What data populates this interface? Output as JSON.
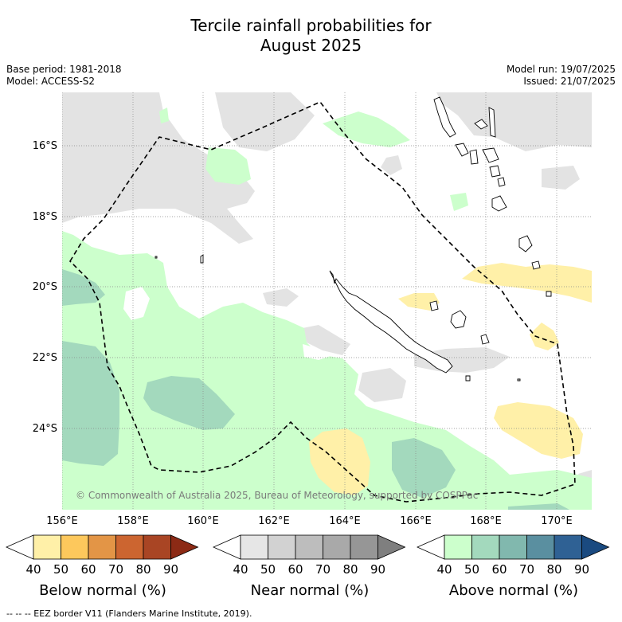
{
  "title_line1": "Tercile rainfall probabilities for",
  "title_line2": "August 2025",
  "base_period": "Base period: 1981-2018",
  "model": "Model: ACCESS-S2",
  "model_run": "Model run: 19/07/2025",
  "issued": "Issued: 21/07/2025",
  "copyright": "© Commonwealth of Australia 2025, Bureau of Meteorology, supported by COSPPac",
  "lat_labels": [
    "16°S",
    "18°S",
    "20°S",
    "22°S",
    "24°S"
  ],
  "lon_labels": [
    "156°E",
    "158°E",
    "160°E",
    "162°E",
    "164°E",
    "166°E",
    "168°E",
    "170°E"
  ],
  "colorbars": [
    {
      "label": "Below normal (%)",
      "ticks": [
        "40",
        "50",
        "60",
        "70",
        "80",
        "90"
      ],
      "colors": [
        "#ffffff",
        "#fff0a8",
        "#fdc85c",
        "#e39546",
        "#cc6530",
        "#a94524",
        "#8c2a15"
      ]
    },
    {
      "label": "Near normal (%)",
      "ticks": [
        "40",
        "50",
        "60",
        "70",
        "80",
        "90"
      ],
      "colors": [
        "#ffffff",
        "#e6e6e6",
        "#d2d2d2",
        "#bdbdbd",
        "#a9a9a9",
        "#969696",
        "#7f7f7f"
      ]
    },
    {
      "label": "Above normal (%)",
      "ticks": [
        "40",
        "50",
        "60",
        "70",
        "80",
        "90"
      ],
      "colors": [
        "#ffffff",
        "#ccffcc",
        "#a3d9bd",
        "#81b8ae",
        "#5a8fa0",
        "#2f6194",
        "#1a4a80"
      ]
    }
  ],
  "legend_note": "-- -- -- EEZ border V11 (Flanders Marine Institute, 2019)."
}
